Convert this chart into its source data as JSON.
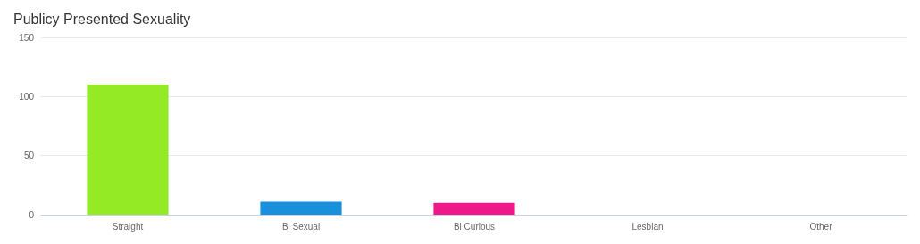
{
  "chart_data": {
    "type": "bar",
    "title": "Publicy Presented Sexuality",
    "categories": [
      "Straight",
      "Bi Sexual",
      "Bi Curious",
      "Lesbian",
      "Other"
    ],
    "values": [
      110,
      11,
      10,
      0,
      0
    ],
    "colors": [
      "#94eb25",
      "#1890dc",
      "#ef1888",
      "#888888",
      "#888888"
    ],
    "ylim": [
      0,
      150
    ],
    "yticks": [
      0,
      50,
      100,
      150
    ],
    "grid": "y"
  }
}
